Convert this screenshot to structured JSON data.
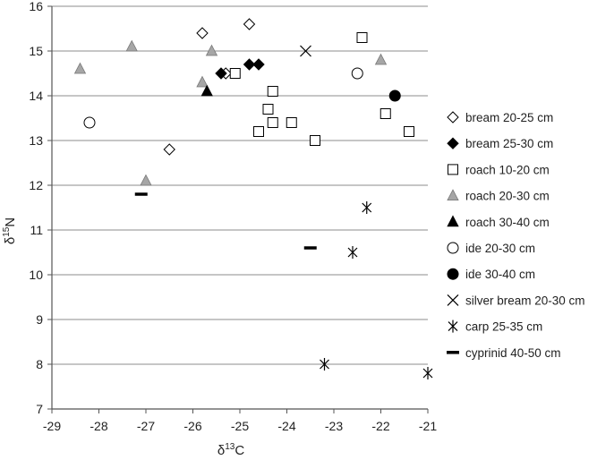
{
  "chart_data": {
    "type": "scatter",
    "xlabel": "δ13C",
    "ylabel": "δ15N",
    "xlim": [
      -29,
      -21
    ],
    "ylim": [
      7,
      16
    ],
    "x_ticks": [
      -29,
      -28,
      -27,
      -26,
      -25,
      -24,
      -23,
      -22,
      -21
    ],
    "y_ticks": [
      7,
      8,
      9,
      10,
      11,
      12,
      13,
      14,
      15,
      16
    ],
    "grid": "horizontal",
    "legend_position": "right",
    "series": [
      {
        "name": "bream 20-25 cm",
        "marker": "diamond-open",
        "color": "#000000",
        "points": [
          [
            -25.8,
            15.4
          ],
          [
            -24.8,
            15.6
          ],
          [
            -25.3,
            14.5
          ],
          [
            -26.5,
            12.8
          ]
        ]
      },
      {
        "name": "bream 25-30 cm",
        "marker": "diamond-filled",
        "color": "#000000",
        "points": [
          [
            -25.4,
            14.5
          ],
          [
            -24.8,
            14.7
          ],
          [
            -24.6,
            14.7
          ]
        ]
      },
      {
        "name": "roach 10-20 cm",
        "marker": "square-open",
        "color": "#000000",
        "points": [
          [
            -22.4,
            15.3
          ],
          [
            -25.1,
            14.5
          ],
          [
            -24.3,
            14.1
          ],
          [
            -24.4,
            13.7
          ],
          [
            -24.3,
            13.4
          ],
          [
            -23.9,
            13.4
          ],
          [
            -24.6,
            13.2
          ],
          [
            -23.4,
            13.0
          ],
          [
            -21.9,
            13.6
          ],
          [
            -21.4,
            13.2
          ]
        ]
      },
      {
        "name": "roach 20-30 cm",
        "marker": "triangle-gray",
        "color": "#a6a6a6",
        "points": [
          [
            -28.4,
            14.6
          ],
          [
            -27.3,
            15.1
          ],
          [
            -25.6,
            15.0
          ],
          [
            -25.8,
            14.3
          ],
          [
            -22.0,
            14.8
          ],
          [
            -27.0,
            12.1
          ]
        ]
      },
      {
        "name": "roach 30-40 cm",
        "marker": "triangle-filled",
        "color": "#000000",
        "points": [
          [
            -25.7,
            14.1
          ]
        ]
      },
      {
        "name": "ide 20-30 cm",
        "marker": "circle-open",
        "color": "#000000",
        "points": [
          [
            -28.2,
            13.4
          ],
          [
            -22.5,
            14.5
          ]
        ]
      },
      {
        "name": "ide 30-40 cm",
        "marker": "circle-filled",
        "color": "#000000",
        "points": [
          [
            -21.7,
            14.0
          ]
        ]
      },
      {
        "name": "silver bream 20-30 cm",
        "marker": "x",
        "color": "#000000",
        "points": [
          [
            -23.6,
            15.0
          ]
        ]
      },
      {
        "name": "carp 25-35 cm",
        "marker": "asterisk",
        "color": "#000000",
        "points": [
          [
            -22.3,
            11.5
          ],
          [
            -22.6,
            10.5
          ],
          [
            -23.2,
            8.0
          ],
          [
            -21.0,
            7.8
          ]
        ]
      },
      {
        "name": "cyprinid 40-50 cm",
        "marker": "dash",
        "color": "#000000",
        "points": [
          [
            -27.1,
            11.8
          ],
          [
            -23.5,
            10.6
          ]
        ]
      }
    ]
  }
}
